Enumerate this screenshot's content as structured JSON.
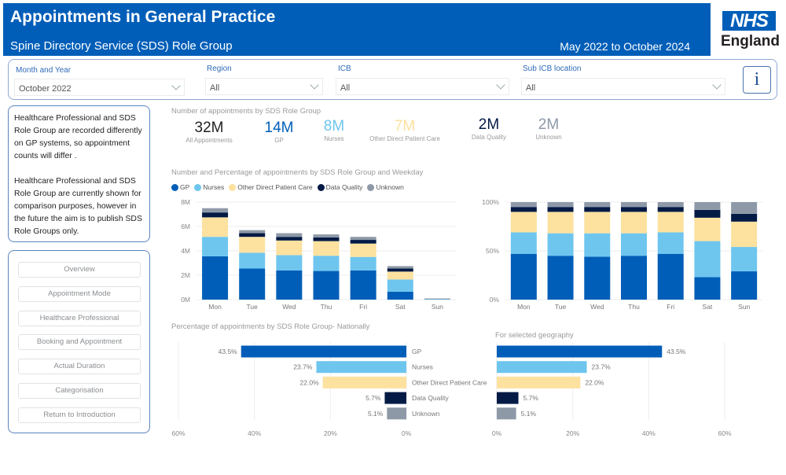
{
  "header": {
    "title": "Appointments in General Practice",
    "subtitle": "Spine Directory Service (SDS) Role Group",
    "date_range": "May 2022 to October 2024",
    "logo_top": "NHS",
    "logo_bottom": "England"
  },
  "filters": {
    "month_year": {
      "label": "Month and Year",
      "value": "October 2022"
    },
    "region": {
      "label": "Region",
      "value": "All"
    },
    "icb": {
      "label": "ICB",
      "value": "All"
    },
    "sub_icb": {
      "label": "Sub ICB location",
      "value": "All"
    },
    "info_icon": "i"
  },
  "note": {
    "para1": "Healthcare Professional and SDS Role Group are recorded differently on GP systems, so appointment counts will differ .",
    "para2": "Healthcare Professional and SDS Role Group are currently shown for comparison purposes, however in the future the aim is to publish SDS Role Groups only."
  },
  "nav": {
    "items": [
      {
        "label": "Overview"
      },
      {
        "label": "Appointment Mode"
      },
      {
        "label": "Healthcare Professional"
      },
      {
        "label": "Booking and Appointment"
      },
      {
        "label": "Actual Duration"
      },
      {
        "label": "Categorisation"
      },
      {
        "label": "Return to Introduction"
      }
    ]
  },
  "colors": {
    "gp": "#005eb8",
    "nurses": "#6ec6ee",
    "other": "#fce19f",
    "data_quality": "#031a45",
    "unknown": "#8e99a8"
  },
  "kpis": {
    "title": "Number of appointments by SDS Role Group",
    "items": [
      {
        "value": "32M",
        "label": "All Appointments",
        "color": "#222222"
      },
      {
        "value": "14M",
        "label": "GP",
        "color": "#005eb8"
      },
      {
        "value": "8M",
        "label": "Nurses",
        "color": "#6ec6ee"
      },
      {
        "value": "7M",
        "label": "Other Direct Patient Care",
        "color": "#fce19f"
      },
      {
        "value": "2M",
        "label": "Data Quality",
        "color": "#031a45"
      },
      {
        "value": "2M",
        "label": "Unknown",
        "color": "#8e99a8"
      }
    ]
  },
  "weekday_section": {
    "title": "Number and Percentage of appointments by SDS Role Group and Weekday",
    "legend": [
      "GP",
      "Nurses",
      "Other Direct Patient Care",
      "Data Quality",
      "Unknown"
    ]
  },
  "national_section": {
    "title": "Percentage of appointments by SDS Role Group- Nationally"
  },
  "geo_section": {
    "title": "For selected geography"
  },
  "chart_data": [
    {
      "id": "weekday_count",
      "type": "bar",
      "stacked": true,
      "categories": [
        "Mon",
        "Tue",
        "Wed",
        "Thu",
        "Fri",
        "Sat",
        "Sun"
      ],
      "series": [
        {
          "name": "GP",
          "values": [
            3.55,
            2.55,
            2.4,
            2.35,
            2.4,
            0.65,
            0.03
          ]
        },
        {
          "name": "Nurses",
          "values": [
            1.6,
            1.3,
            1.25,
            1.25,
            1.1,
            1.0,
            0.025
          ]
        },
        {
          "name": "Other Direct Patient Care",
          "values": [
            1.6,
            1.3,
            1.2,
            1.2,
            1.1,
            0.65,
            0.025
          ]
        },
        {
          "name": "Data Quality",
          "values": [
            0.4,
            0.3,
            0.3,
            0.3,
            0.3,
            0.25,
            0.01
          ]
        },
        {
          "name": "Unknown",
          "values": [
            0.35,
            0.25,
            0.3,
            0.25,
            0.25,
            0.2,
            0.01
          ]
        }
      ],
      "yticks": [
        "0M",
        "2M",
        "4M",
        "6M",
        "8M"
      ],
      "ylim": [
        0,
        8
      ],
      "yunit": "millions",
      "grid": true,
      "legend": "top-left"
    },
    {
      "id": "weekday_percent",
      "type": "bar",
      "stacked": true,
      "percent": true,
      "categories": [
        "Mon",
        "Tue",
        "Wed",
        "Thu",
        "Fri",
        "Sat",
        "Sun"
      ],
      "series": [
        {
          "name": "GP",
          "values": [
            47,
            45,
            44,
            45,
            47,
            23,
            29
          ]
        },
        {
          "name": "Nurses",
          "values": [
            22,
            23,
            24,
            23,
            22,
            37,
            25
          ]
        },
        {
          "name": "Other Direct Patient Care",
          "values": [
            21,
            22,
            22,
            22,
            21,
            24,
            26
          ]
        },
        {
          "name": "Data Quality",
          "values": [
            5,
            5,
            5,
            5,
            5,
            8,
            8
          ]
        },
        {
          "name": "Unknown",
          "values": [
            5,
            5,
            5,
            5,
            5,
            8,
            12
          ]
        }
      ],
      "yticks": [
        "0%",
        "50%",
        "100%"
      ],
      "ylim": [
        0,
        100
      ],
      "grid": true
    },
    {
      "id": "national",
      "type": "bar",
      "orientation": "horizontal",
      "direction": "right-to-left",
      "title": "Percentage of appointments by SDS Role Group- Nationally",
      "categories": [
        "GP",
        "Nurses",
        "Other Direct Patient Care",
        "Data Quality",
        "Unknown"
      ],
      "values": [
        43.5,
        23.7,
        22.0,
        5.7,
        5.1
      ],
      "labels": [
        "43.5%",
        "23.7%",
        "22.0%",
        "5.7%",
        "5.1%"
      ],
      "xticks": [
        "60%",
        "40%",
        "20%",
        "0%"
      ],
      "xlim": [
        0,
        60
      ]
    },
    {
      "id": "geography",
      "type": "bar",
      "orientation": "horizontal",
      "title": "For selected geography",
      "categories": [
        "GP",
        "Nurses",
        "Other Direct Patient Care",
        "Data Quality",
        "Unknown"
      ],
      "values": [
        43.5,
        23.7,
        22.0,
        5.7,
        5.1
      ],
      "labels": [
        "43.5%",
        "23.7%",
        "22.0%",
        "5.7%",
        "5.1%"
      ],
      "xticks": [
        "0%",
        "20%",
        "40%",
        "60%"
      ],
      "xlim": [
        0,
        60
      ]
    }
  ]
}
